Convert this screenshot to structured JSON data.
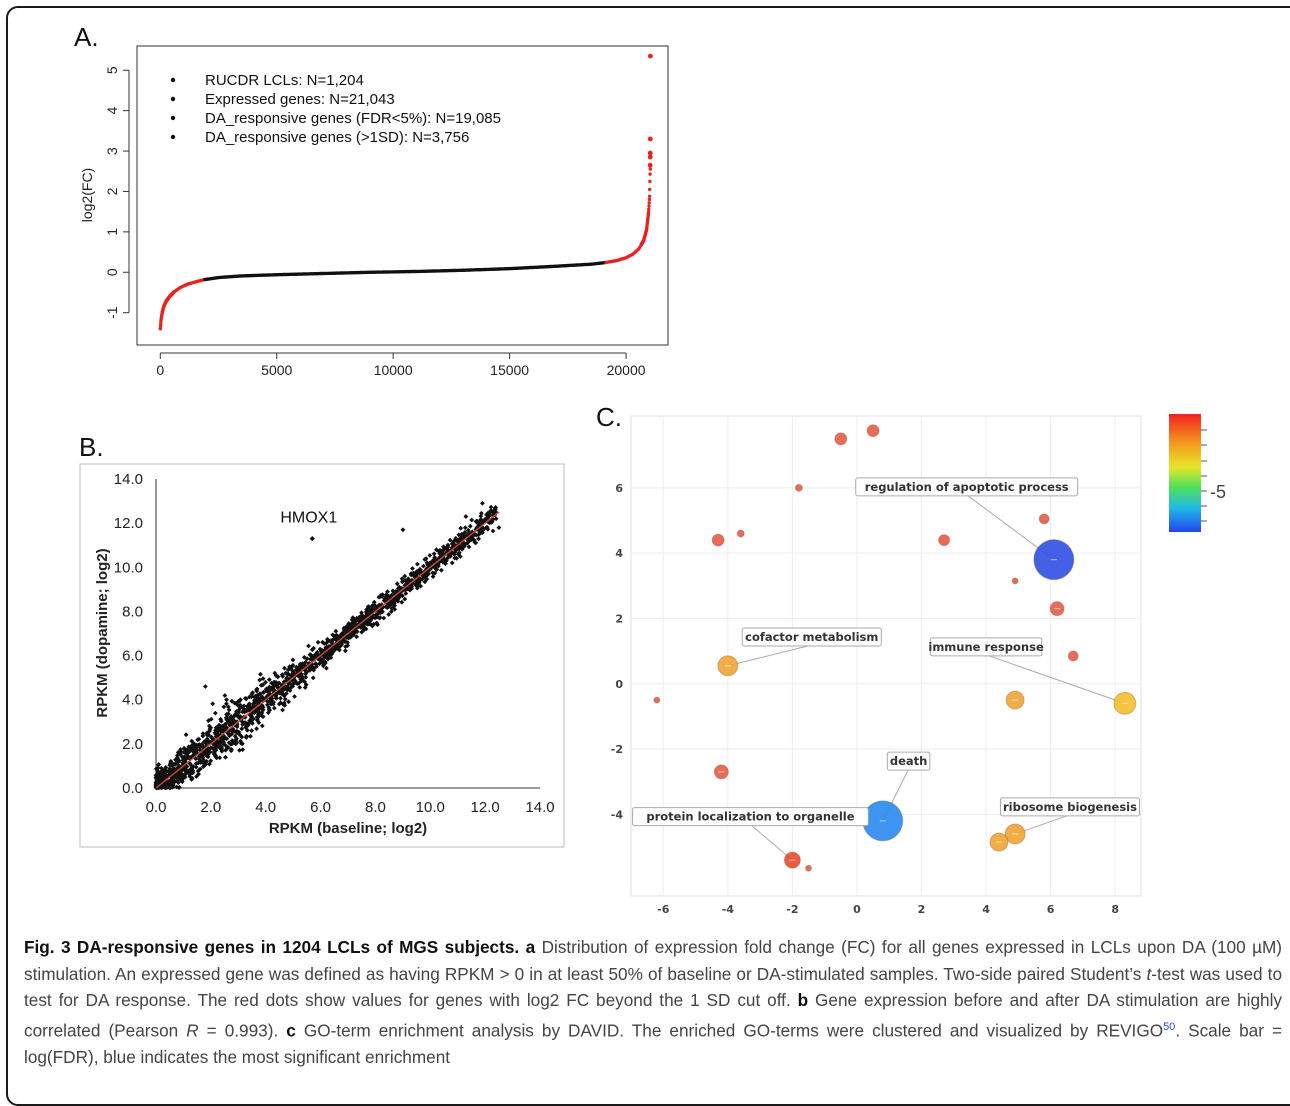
{
  "chart_data": [
    {
      "panel": "A.",
      "type": "scatter",
      "ylabel": "log2(FC)",
      "xlim": [
        -1000,
        21800
      ],
      "ylim": [
        -1.8,
        5.6
      ],
      "xticks": [
        "0",
        "5000",
        "10000",
        "15000",
        "20000"
      ],
      "yticks": [
        "-1",
        "0",
        "1",
        "2",
        "3",
        "4",
        "5"
      ],
      "legend": [
        "RUCDR LCLs: N=1,204",
        "Expressed genes: N=21,043",
        "DA_responsive genes (FDR<5%): N=19,085",
        "DA_responsive genes (>1SD): N=3,756"
      ],
      "sorted_curve": {
        "x": [
          0,
          30,
          80,
          150,
          250,
          400,
          600,
          850,
          1150,
          1500,
          1900,
          2500,
          3500,
          5000,
          7000,
          9000,
          11000,
          13000,
          15000,
          17000,
          18500,
          19100,
          19600,
          20000,
          20300,
          20550,
          20750,
          20880,
          20970,
          21010,
          21030,
          21043
        ],
        "y": [
          -1.4,
          -1.2,
          -1.0,
          -0.85,
          -0.72,
          -0.6,
          -0.48,
          -0.38,
          -0.3,
          -0.24,
          -0.18,
          -0.13,
          -0.09,
          -0.06,
          -0.03,
          0.0,
          0.02,
          0.05,
          0.09,
          0.15,
          0.2,
          0.24,
          0.29,
          0.36,
          0.45,
          0.58,
          0.78,
          1.05,
          1.5,
          1.9,
          2.4,
          2.6
        ]
      },
      "outliers": [
        {
          "x": 21043,
          "y": 5.35
        },
        {
          "x": 21040,
          "y": 3.3
        },
        {
          "x": 21038,
          "y": 2.95
        },
        {
          "x": 21036,
          "y": 2.85
        },
        {
          "x": 21034,
          "y": 2.65
        }
      ],
      "red_threshold_low_x": 1900,
      "red_threshold_high_x": 19100,
      "colors": {
        "highlight": "#e8231f",
        "base": "#111111"
      }
    },
    {
      "panel": "B.",
      "type": "scatter",
      "xlabel": "RPKM (baseline; log2)",
      "ylabel": "RPKM  (dopamine; log2)",
      "xlim": [
        0,
        14
      ],
      "ylim": [
        0,
        14
      ],
      "xticks": [
        "0.0",
        "2.0",
        "4.0",
        "6.0",
        "8.0",
        "10.0",
        "12.0",
        "14.0"
      ],
      "yticks": [
        "0.0",
        "2.0",
        "4.0",
        "6.0",
        "8.0",
        "10.0",
        "12.0",
        "14.0"
      ],
      "annotation": {
        "text": "HMOX1",
        "x": 5.7,
        "y": 11.3
      },
      "pearson_r": 0.993,
      "fit_line": {
        "from": [
          0,
          0
        ],
        "to": [
          12.5,
          12.5
        ],
        "color": "#c9483a"
      },
      "n_genes": 21043
    },
    {
      "panel": "C.",
      "type": "scatter",
      "xlim": [
        -7,
        8.8
      ],
      "ylim": [
        -6.5,
        8.2
      ],
      "xticks": [
        "-6",
        "-4",
        "-2",
        "0",
        "2",
        "4",
        "6",
        "8"
      ],
      "yticks": [
        "-4",
        "-2",
        "0",
        "2",
        "4",
        "6"
      ],
      "colorbar": {
        "tick_label": "-5",
        "scale": "log(FDR)"
      },
      "bubbles": [
        {
          "x": -0.5,
          "y": 7.5,
          "size": 6,
          "color": "#e8604a"
        },
        {
          "x": 0.5,
          "y": 7.75,
          "size": 6,
          "color": "#e8604a"
        },
        {
          "x": -1.8,
          "y": 6.0,
          "size": 3.5,
          "color": "#e8604a"
        },
        {
          "x": -4.3,
          "y": 4.4,
          "size": 6,
          "color": "#e8604a"
        },
        {
          "x": -3.6,
          "y": 4.6,
          "size": 3.5,
          "color": "#e8604a"
        },
        {
          "x": 2.7,
          "y": 4.4,
          "size": 5.5,
          "color": "#e8604a"
        },
        {
          "x": 5.8,
          "y": 5.05,
          "size": 5,
          "color": "#e8604a"
        },
        {
          "x": 6.1,
          "y": 3.8,
          "size": 20,
          "color": "#3553e6"
        },
        {
          "x": 4.9,
          "y": 3.15,
          "size": 3,
          "color": "#e8604a"
        },
        {
          "x": 6.2,
          "y": 2.3,
          "size": 7,
          "color": "#e8604a"
        },
        {
          "x": 6.7,
          "y": 0.85,
          "size": 5,
          "color": "#e8604a"
        },
        {
          "x": -4.0,
          "y": 0.55,
          "size": 10,
          "color": "#f0a838"
        },
        {
          "x": 4.9,
          "y": -0.5,
          "size": 9,
          "color": "#f0a838"
        },
        {
          "x": 8.3,
          "y": -0.6,
          "size": 11,
          "color": "#f5c030"
        },
        {
          "x": -6.2,
          "y": -0.5,
          "size": 3,
          "color": "#e8604a"
        },
        {
          "x": -4.2,
          "y": -2.7,
          "size": 7,
          "color": "#e8604a"
        },
        {
          "x": 0.8,
          "y": -4.2,
          "size": 20,
          "color": "#2e8cf0"
        },
        {
          "x": 4.9,
          "y": -4.6,
          "size": 10,
          "color": "#f0a838"
        },
        {
          "x": 4.4,
          "y": -4.85,
          "size": 9,
          "color": "#f0a838"
        },
        {
          "x": -2.0,
          "y": -5.4,
          "size": 8,
          "color": "#e85030"
        },
        {
          "x": -1.5,
          "y": -5.65,
          "size": 3,
          "color": "#e8604a"
        }
      ],
      "labels": [
        {
          "text": "regulation of apoptotic process",
          "bubble": 7,
          "lx": 3.4,
          "ly": 6.0
        },
        {
          "text": "cofactor metabolism",
          "bubble": 11,
          "lx": -1.4,
          "ly": 1.4
        },
        {
          "text": "immune response",
          "bubble": 13,
          "lx": 4.0,
          "ly": 1.1
        },
        {
          "text": "death",
          "bubble": 16,
          "lx": 1.6,
          "ly": -2.4
        },
        {
          "text": "protein localization to organelle",
          "bubble": 19,
          "lx": -3.3,
          "ly": -4.1
        },
        {
          "text": "ribosome biogenesis",
          "bubble": 17,
          "lx": 6.6,
          "ly": -3.8
        }
      ]
    }
  ],
  "caption": {
    "title": "Fig. 3 DA-responsive genes in 1204 LCLs of MGS subjects.",
    "a_label": "a",
    "a_text": "Distribution of expression fold change (FC) for all genes expressed in LCLs upon DA (100 µM) stimulation. An expressed gene was defined as having RPKM > 0 in at least 50% of baseline or DA-stimulated samples. Two-side paired Student’s",
    "t_italic": "t",
    "a_text2": "-test was used to test for DA response. The red dots show values for genes with log2 FC beyond the 1 SD cut off.",
    "b_label": "b",
    "b_text": "Gene expression before and after DA stimulation are highly correlated (Pearson",
    "r_italic": "R",
    "b_text2": "= 0.993).",
    "c_label": "c",
    "c_text": "GO-term enrichment analysis by DAVID. The enriched GO-terms were clustered and visualized by REVIGO",
    "ref": "50",
    "c_text2": ". Scale bar = log(FDR), blue indicates the most significant enrichment"
  }
}
